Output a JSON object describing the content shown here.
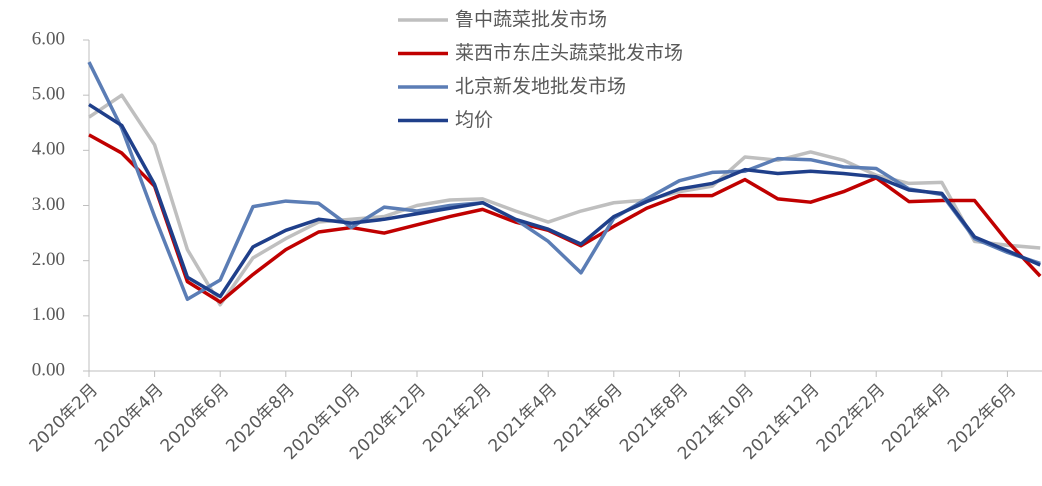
{
  "chart_data": {
    "type": "line",
    "categories": [
      "2020年2月",
      null,
      "2020年4月",
      null,
      "2020年6月",
      null,
      "2020年8月",
      null,
      "2020年10月",
      null,
      "2020年12月",
      null,
      "2021年2月",
      null,
      "2021年4月",
      null,
      "2021年6月",
      null,
      "2021年8月",
      null,
      "2021年10月",
      null,
      "2021年12月",
      null,
      "2022年2月",
      null,
      "2022年4月",
      null,
      "2022年6月",
      null
    ],
    "series": [
      {
        "name": "鲁中蔬菜批发市场",
        "color": "#bfbfbf",
        "values": [
          4.6,
          5.0,
          4.1,
          2.2,
          1.2,
          2.05,
          2.4,
          2.7,
          2.75,
          2.8,
          3.0,
          3.1,
          3.12,
          2.9,
          2.7,
          2.9,
          3.05,
          3.1,
          3.25,
          3.35,
          3.88,
          3.82,
          3.97,
          3.82,
          3.55,
          3.4,
          3.42,
          2.35,
          2.28,
          2.23
        ]
      },
      {
        "name": "莱西市东庄头蔬菜批发市场",
        "color": "#c00000",
        "values": [
          4.28,
          3.95,
          3.35,
          1.62,
          1.25,
          1.75,
          2.2,
          2.52,
          2.6,
          2.5,
          2.65,
          2.8,
          2.93,
          2.7,
          2.55,
          2.27,
          2.62,
          2.95,
          3.18,
          3.18,
          3.47,
          3.12,
          3.06,
          3.25,
          3.5,
          3.07,
          3.09,
          3.09,
          2.35,
          1.72
        ]
      },
      {
        "name": "北京新发地批发市场",
        "color": "#5b7db5",
        "values": [
          5.6,
          4.4,
          2.8,
          1.3,
          1.65,
          2.98,
          3.08,
          3.04,
          2.6,
          2.97,
          2.9,
          3.0,
          3.05,
          2.75,
          2.35,
          1.78,
          2.77,
          3.12,
          3.45,
          3.6,
          3.62,
          3.85,
          3.83,
          3.7,
          3.67,
          3.3,
          3.2,
          2.4,
          2.15,
          1.95
        ]
      },
      {
        "name": "均价",
        "color": "#1f3f8a",
        "values": [
          4.83,
          4.45,
          3.38,
          1.7,
          1.35,
          2.25,
          2.55,
          2.75,
          2.68,
          2.75,
          2.85,
          2.95,
          3.05,
          2.75,
          2.57,
          2.3,
          2.8,
          3.07,
          3.3,
          3.4,
          3.65,
          3.58,
          3.62,
          3.58,
          3.52,
          3.28,
          3.22,
          2.43,
          2.18,
          1.92
        ]
      }
    ],
    "ylim": [
      0,
      6
    ],
    "yticks": [
      {
        "value": 0,
        "label": "0.00"
      },
      {
        "value": 1,
        "label": "1.00"
      },
      {
        "value": 2,
        "label": "2.00"
      },
      {
        "value": 3,
        "label": "3.00"
      },
      {
        "value": 4,
        "label": "4.00"
      },
      {
        "value": 5,
        "label": "5.00"
      },
      {
        "value": 6,
        "label": "6.00"
      }
    ],
    "legend": "top"
  }
}
